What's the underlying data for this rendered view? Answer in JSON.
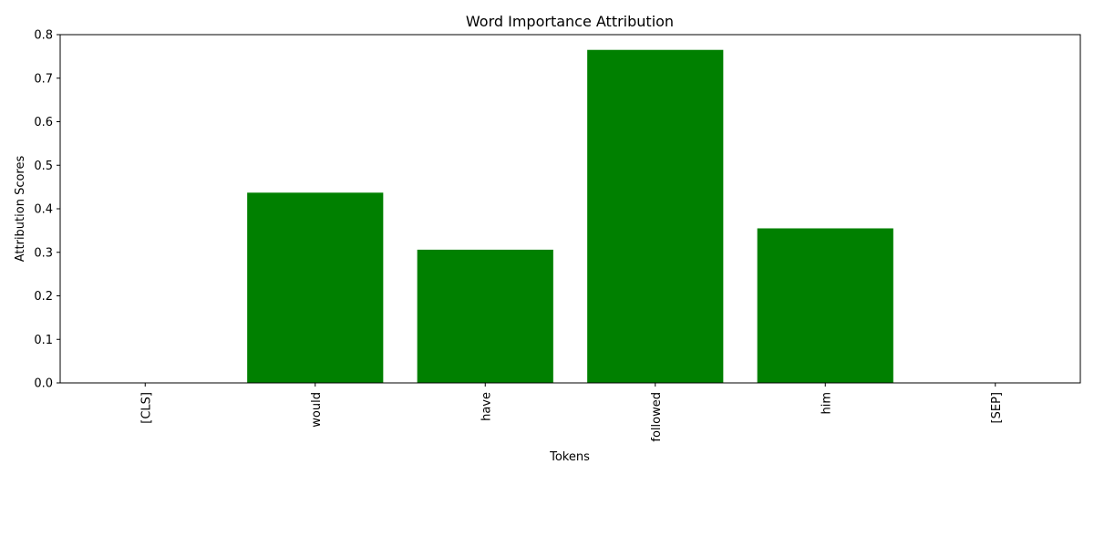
{
  "chart_data": {
    "type": "bar",
    "title": "Word Importance Attribution",
    "xlabel": "Tokens",
    "ylabel": "Attribution Scores",
    "categories": [
      "[CLS]",
      "would",
      "have",
      "followed",
      "him",
      "[SEP]"
    ],
    "values": [
      0.0,
      0.437,
      0.306,
      0.765,
      0.355,
      0.0
    ],
    "ylim": [
      0,
      0.8
    ],
    "yticks": [
      "0.0",
      "0.1",
      "0.2",
      "0.3",
      "0.4",
      "0.5",
      "0.6",
      "0.7",
      "0.8"
    ],
    "bar_color": "#008000",
    "grid": false
  }
}
